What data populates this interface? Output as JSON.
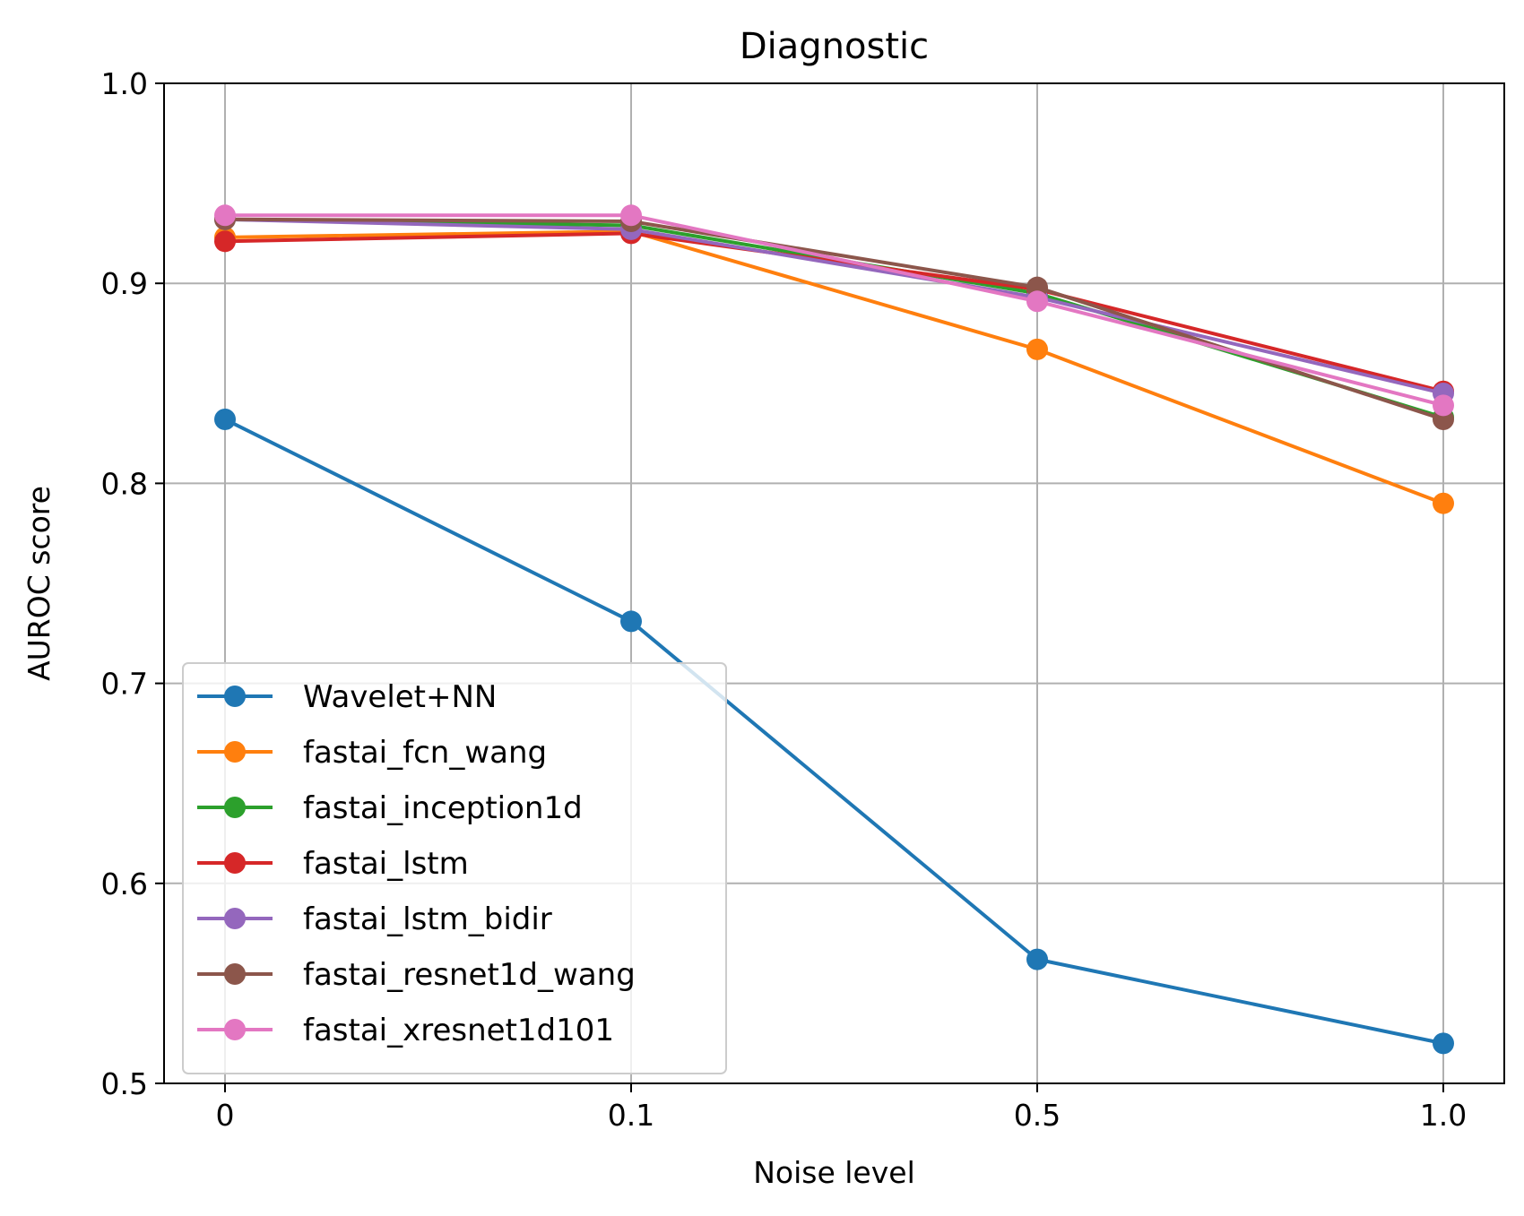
{
  "chart_data": {
    "type": "line",
    "title": "Diagnostic",
    "xlabel": "Noise level",
    "ylabel": "AUROC score",
    "categories": [
      "0",
      "0.1",
      "0.5",
      "1.0"
    ],
    "ylim": [
      0.5,
      1.0
    ],
    "yticks": [
      "0.5",
      "0.6",
      "0.7",
      "0.8",
      "0.9",
      "1.0"
    ],
    "grid": true,
    "legend_position": "lower-left",
    "series": [
      {
        "name": "Wavelet+NN",
        "color": "#1f77b4",
        "values": [
          0.832,
          0.731,
          0.562,
          0.52
        ]
      },
      {
        "name": "fastai_fcn_wang",
        "color": "#ff7f0e",
        "values": [
          0.923,
          0.926,
          0.867,
          0.79
        ]
      },
      {
        "name": "fastai_inception1d",
        "color": "#2ca02c",
        "values": [
          0.932,
          0.929,
          0.895,
          0.833
        ]
      },
      {
        "name": "fastai_lstm",
        "color": "#d62728",
        "values": [
          0.921,
          0.925,
          0.897,
          0.846
        ]
      },
      {
        "name": "fastai_lstm_bidir",
        "color": "#9467bd",
        "values": [
          0.932,
          0.927,
          0.893,
          0.845
        ]
      },
      {
        "name": "fastai_resnet1d_wang",
        "color": "#8c564b",
        "values": [
          0.932,
          0.931,
          0.898,
          0.832
        ]
      },
      {
        "name": "fastai_xresnet1d101",
        "color": "#e377c2",
        "values": [
          0.934,
          0.934,
          0.891,
          0.839
        ]
      }
    ]
  }
}
